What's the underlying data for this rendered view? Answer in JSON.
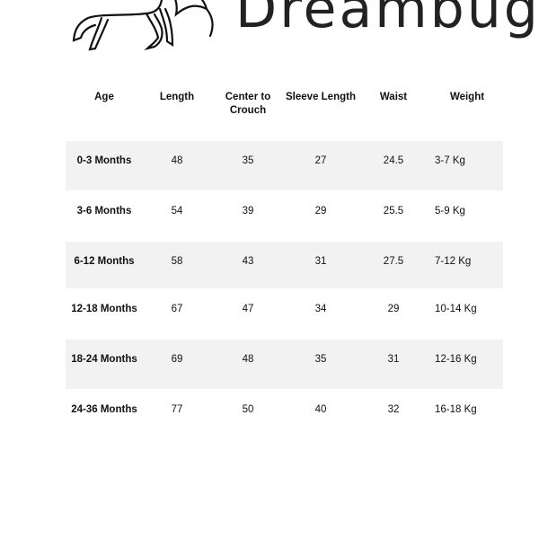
{
  "logo": {
    "text": "Dreambug",
    "icon": "horse-line-art"
  },
  "table": {
    "headers": [
      "Age",
      "Length",
      "Center to Crouch",
      "Sleeve Length",
      "Waist",
      "Weight"
    ],
    "rows": [
      [
        "0-3 Months",
        "48",
        "35",
        "27",
        "24.5",
        "3-7 Kg"
      ],
      [
        "3-6 Months",
        "54",
        "39",
        "29",
        "25.5",
        "5-9 Kg"
      ],
      [
        "6-12 Months",
        "58",
        "43",
        "31",
        "27.5",
        "7-12 Kg"
      ],
      [
        "12-18 Months",
        "67",
        "47",
        "34",
        "29",
        "10-14 Kg"
      ],
      [
        "18-24 Months",
        "69",
        "48",
        "35",
        "31",
        "12-16 Kg"
      ],
      [
        "24-36 Months",
        "77",
        "50",
        "40",
        "32",
        "16-18 Kg"
      ]
    ],
    "shade_color": "#f2f2f2"
  }
}
